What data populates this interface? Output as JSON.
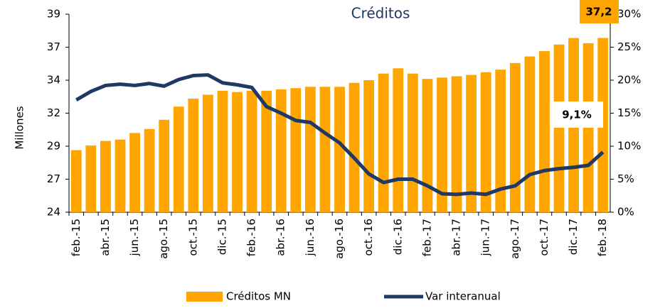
{
  "chart_data": {
    "type": "bar-line",
    "title": "Créditos",
    "ylabel": "Millones",
    "categories": [
      "feb.-15",
      null,
      "abr.-15",
      null,
      "jun.-15",
      null,
      "ago.-15",
      null,
      "oct.-15",
      null,
      "dic.-15",
      null,
      "feb.-16",
      null,
      "abr.-16",
      null,
      "jun.-16",
      null,
      "ago.-16",
      null,
      "oct.-16",
      null,
      "dic.-16",
      null,
      "feb.-17",
      null,
      "abr.-17",
      null,
      "jun.-17",
      null,
      "ago.-17",
      null,
      "oct.-17",
      null,
      "dic.-17",
      null,
      "feb.-18"
    ],
    "series": [
      {
        "name": "Créditos MN",
        "type": "bar",
        "color": "#ffa500",
        "values": [
          28.7,
          29.05,
          29.4,
          29.5,
          30.0,
          30.3,
          31.0,
          32.0,
          32.6,
          32.9,
          33.2,
          33.1,
          33.2,
          33.2,
          33.3,
          33.4,
          33.5,
          33.5,
          33.5,
          33.8,
          34.0,
          34.5,
          34.9,
          34.5,
          34.1,
          34.2,
          34.3,
          34.4,
          34.6,
          34.8,
          35.3,
          35.8,
          36.2,
          36.7,
          37.2,
          36.8,
          37.2
        ],
        "value_labels": [
          null,
          null,
          null,
          null,
          null,
          null,
          null,
          null,
          null,
          null,
          null,
          null,
          null,
          null,
          null,
          null,
          null,
          null,
          null,
          null,
          null,
          null,
          null,
          null,
          null,
          null,
          null,
          null,
          null,
          null,
          null,
          null,
          null,
          null,
          null,
          null,
          "37,2"
        ]
      },
      {
        "name": "Var interanual",
        "type": "line",
        "axis": "y2",
        "color": "#1f3864",
        "values": [
          17.0,
          18.3,
          19.2,
          19.4,
          19.2,
          19.5,
          19.1,
          20.1,
          20.7,
          20.8,
          19.6,
          19.3,
          18.9,
          16.0,
          15.0,
          13.9,
          13.6,
          12.0,
          10.5,
          8.2,
          5.8,
          4.5,
          5.0,
          5.0,
          4.0,
          2.8,
          2.7,
          2.9,
          2.7,
          3.5,
          4.0,
          5.7,
          6.3,
          6.6,
          6.8,
          7.1,
          9.1
        ],
        "value_labels": [
          null,
          null,
          null,
          null,
          null,
          null,
          null,
          null,
          null,
          null,
          null,
          null,
          null,
          null,
          null,
          null,
          null,
          null,
          null,
          null,
          null,
          null,
          null,
          null,
          null,
          null,
          null,
          null,
          null,
          null,
          null,
          null,
          null,
          null,
          null,
          null,
          "9,1%"
        ]
      }
    ],
    "ylim": [
      24,
      39
    ],
    "yticks": [
      24,
      {
        "value": 26.5,
        "label": "27"
      },
      29,
      {
        "value": 31.5,
        "label": "32"
      },
      34,
      {
        "value": 36.5,
        "label": "37"
      },
      39
    ],
    "y2lim": [
      0,
      30
    ],
    "y2ticks": [
      {
        "value": 0,
        "label": "0%"
      },
      {
        "value": 5,
        "label": "5%"
      },
      {
        "value": 10,
        "label": "10%"
      },
      {
        "value": 15,
        "label": "15%"
      },
      {
        "value": 20,
        "label": "20%"
      },
      {
        "value": 25,
        "label": "25%"
      },
      {
        "value": 30,
        "label": "30%"
      }
    ],
    "legend": "bottom"
  }
}
